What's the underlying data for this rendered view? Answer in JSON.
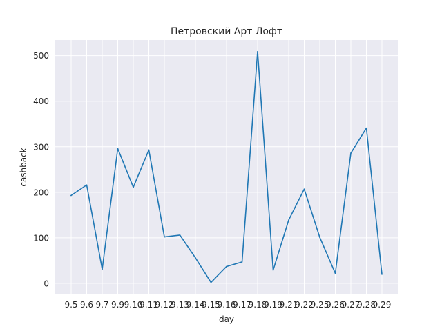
{
  "chart_data": {
    "type": "line",
    "title": "Петровский Арт Лофт",
    "xlabel": "day",
    "ylabel": "cashback",
    "categories": [
      "9.5",
      "9.6",
      "9.7",
      "9.9",
      "9.10",
      "9.11",
      "9.12",
      "9.13",
      "9.14",
      "9.15",
      "9.16",
      "9.17",
      "9.18",
      "9.19",
      "9.21",
      "9.22",
      "9.25",
      "9.26",
      "9.27",
      "9.28",
      "9.29"
    ],
    "series": [
      {
        "values": [
          193,
          216,
          31,
          296,
          211,
          293,
          102,
          106,
          56,
          2,
          37,
          47,
          509,
          29,
          139,
          207,
          101,
          22,
          286,
          341,
          20
        ],
        "color": "#1f77b4"
      }
    ],
    "yticks": [
      0,
      100,
      200,
      300,
      400,
      500
    ],
    "ylim": [
      -24.35,
      534.35
    ],
    "grid": true,
    "background": "#eaeaf2",
    "grid_color": "#ffffff"
  }
}
